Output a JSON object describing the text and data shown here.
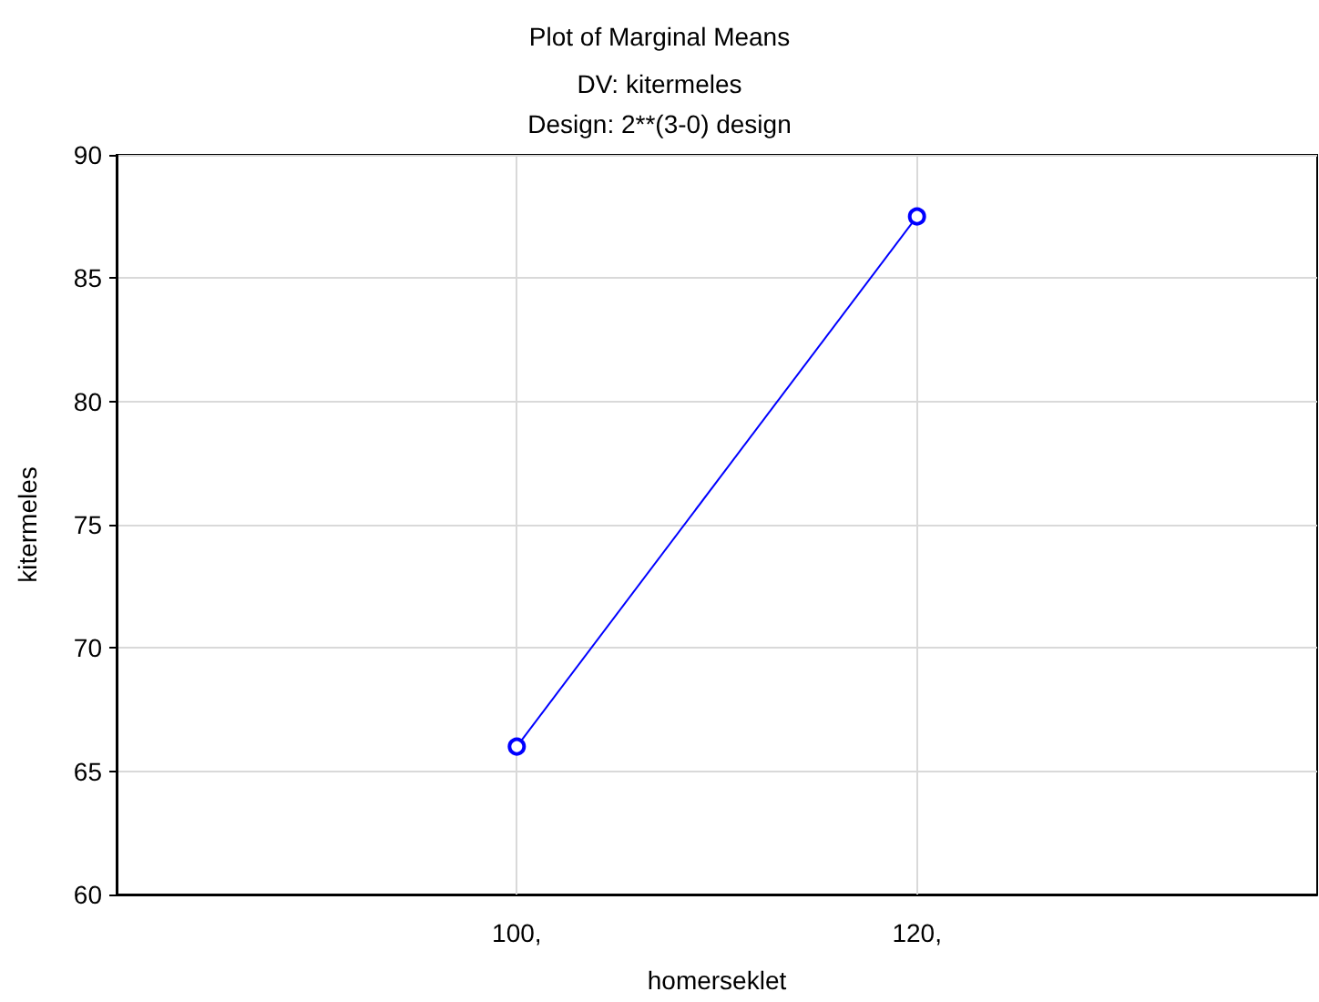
{
  "chart_data": {
    "type": "line",
    "title": "Plot of Marginal Means",
    "subtitle": "DV: kitermeles\nDesign: 2**(3-0) design",
    "xlabel": "homerseklet",
    "ylabel": "kitermeles",
    "x": [
      100,
      120
    ],
    "series": [
      {
        "color": "#0000ff",
        "values": [
          66,
          87.5
        ]
      }
    ],
    "xlim": [
      80,
      140
    ],
    "xticks": [
      {
        "value": 100,
        "label": "100,"
      },
      {
        "value": 120,
        "label": "120,"
      }
    ],
    "ylim": [
      60,
      90
    ],
    "yticks": [
      60,
      65,
      70,
      75,
      80,
      85,
      90
    ],
    "grid": true,
    "marker": "circle",
    "line_style": "solid"
  }
}
